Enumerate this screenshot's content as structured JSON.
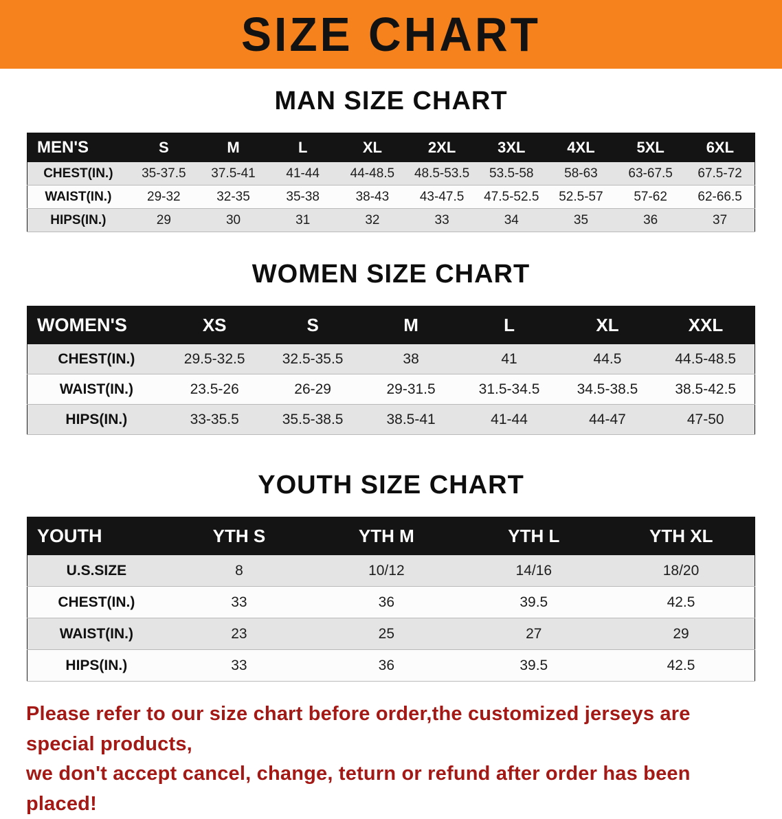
{
  "banner": {
    "title": "SIZE CHART"
  },
  "colors": {
    "banner_orange": "#F5821D",
    "table_header_black": "#141414",
    "row_stripe_gray": "#e4e4e4",
    "notice_red": "#A31915"
  },
  "sections": [
    {
      "heading": "MAN SIZE CHART",
      "table_name": "mens-size-table",
      "columns": [
        "MEN'S",
        "S",
        "M",
        "L",
        "XL",
        "2XL",
        "3XL",
        "4XL",
        "5XL",
        "6XL"
      ],
      "rows": [
        {
          "label": "CHEST(IN.)",
          "values": [
            "35-37.5",
            "37.5-41",
            "41-44",
            "44-48.5",
            "48.5-53.5",
            "53.5-58",
            "58-63",
            "63-67.5",
            "67.5-72"
          ]
        },
        {
          "label": "WAIST(IN.)",
          "values": [
            "29-32",
            "32-35",
            "35-38",
            "38-43",
            "43-47.5",
            "47.5-52.5",
            "52.5-57",
            "57-62",
            "62-66.5"
          ]
        },
        {
          "label": "HIPS(IN.)",
          "values": [
            "29",
            "30",
            "31",
            "32",
            "33",
            "34",
            "35",
            "36",
            "37"
          ]
        }
      ]
    },
    {
      "heading": "WOMEN SIZE CHART",
      "table_name": "womens-size-table",
      "columns": [
        "WOMEN'S",
        "XS",
        "S",
        "M",
        "L",
        "XL",
        "XXL"
      ],
      "rows": [
        {
          "label": "CHEST(IN.)",
          "values": [
            "29.5-32.5",
            "32.5-35.5",
            "38",
            "41",
            "44.5",
            "44.5-48.5"
          ]
        },
        {
          "label": "WAIST(IN.)",
          "values": [
            "23.5-26",
            "26-29",
            "29-31.5",
            "31.5-34.5",
            "34.5-38.5",
            "38.5-42.5"
          ]
        },
        {
          "label": "HIPS(IN.)",
          "values": [
            "33-35.5",
            "35.5-38.5",
            "38.5-41",
            "41-44",
            "44-47",
            "47-50"
          ]
        }
      ]
    },
    {
      "heading": "YOUTH SIZE CHART",
      "table_name": "youth-size-table",
      "columns": [
        "YOUTH",
        "YTH S",
        "YTH M",
        "YTH L",
        "YTH XL"
      ],
      "rows": [
        {
          "label": "U.S.SIZE",
          "values": [
            "8",
            "10/12",
            "14/16",
            "18/20"
          ]
        },
        {
          "label": "CHEST(IN.)",
          "values": [
            "33",
            "36",
            "39.5",
            "42.5"
          ]
        },
        {
          "label": "WAIST(IN.)",
          "values": [
            "23",
            "25",
            "27",
            "29"
          ]
        },
        {
          "label": "HIPS(IN.)",
          "values": [
            "33",
            "36",
            "39.5",
            "42.5"
          ]
        }
      ]
    }
  ],
  "footer": {
    "lines": [
      "Please refer to our size chart before order,the customized jerseys are special products,",
      "we don't accept cancel, change, teturn or refund after order has been placed!"
    ]
  }
}
